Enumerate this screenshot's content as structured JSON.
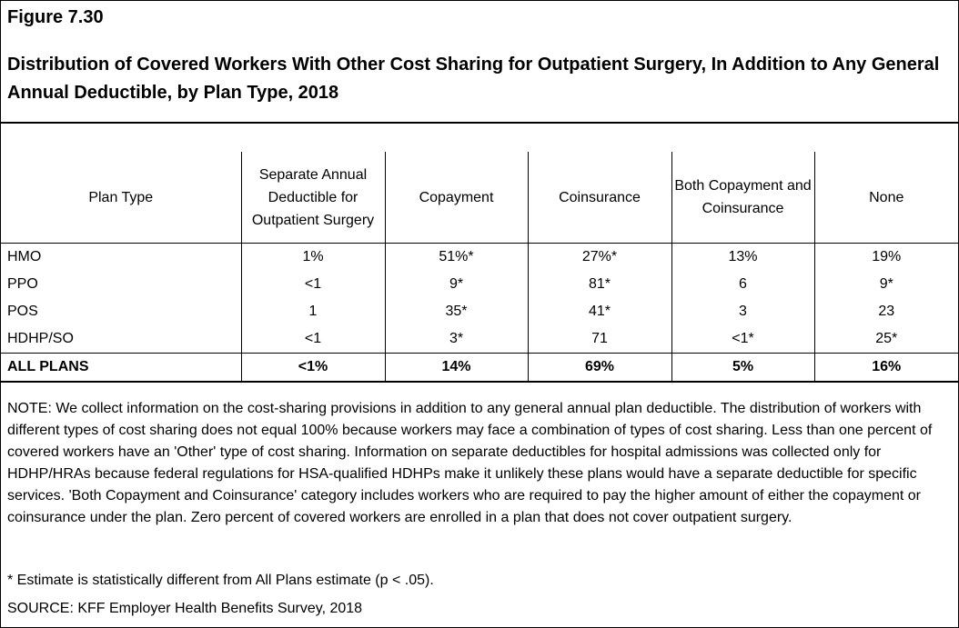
{
  "figure": {
    "label": "Figure 7.30",
    "title": "Distribution of Covered Workers With Other Cost Sharing for Outpatient Surgery, In Addition to Any General Annual Deductible, by Plan Type, 2018"
  },
  "table": {
    "columns": [
      "Plan Type",
      "Separate Annual Deductible for Outpatient Surgery",
      "Copayment",
      "Coinsurance",
      "Both Copayment and Coinsurance",
      "None"
    ],
    "rows": [
      [
        "HMO",
        "1%",
        "51%*",
        "27%*",
        "13%",
        "19%"
      ],
      [
        "PPO",
        "<1",
        "9*",
        "81*",
        "6",
        "9*"
      ],
      [
        "POS",
        "1",
        "35*",
        "41*",
        "3",
        "23"
      ],
      [
        "HDHP/SO",
        "<1",
        "3*",
        "71",
        "<1*",
        "25*"
      ]
    ],
    "total": [
      "ALL PLANS",
      "<1%",
      "14%",
      "69%",
      "5%",
      "16%"
    ]
  },
  "note": "NOTE: We collect information on the cost-sharing provisions in addition to any general annual plan deductible. The distribution of workers with different types of cost sharing does not equal 100% because workers may face a combination of types of cost sharing. Less than one percent of covered workers have an 'Other' type of cost sharing. Information on separate deductibles for hospital admissions was collected only for HDHP/HRAs because federal regulations for HSA-qualified HDHPs make it unlikely these plans would have a separate deductible for specific services. 'Both Copayment and Coinsurance' category includes workers who are required to pay the higher amount of either the copayment or coinsurance under the plan. Zero percent of covered workers are enrolled in a plan that does not cover outpatient surgery.",
  "footnote": "* Estimate is statistically different from All Plans estimate (p < .05).",
  "source": "SOURCE: KFF Employer Health Benefits Survey, 2018"
}
